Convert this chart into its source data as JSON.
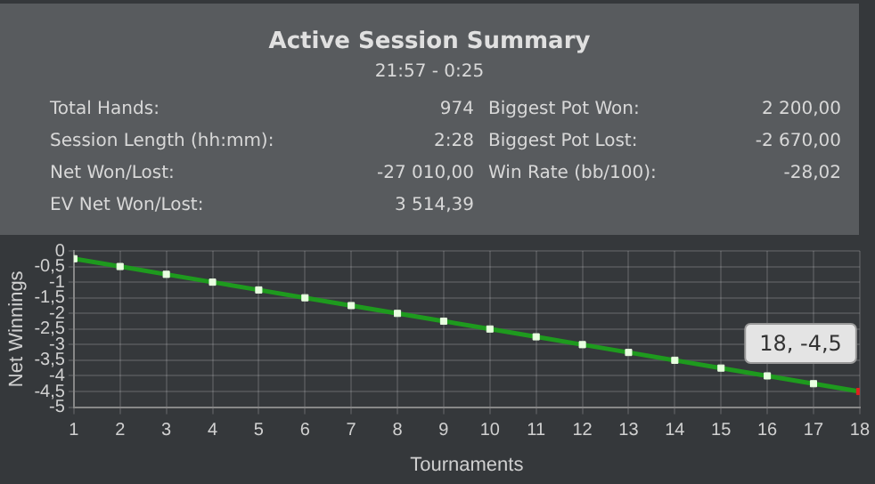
{
  "chart_data": [
    {
      "type": "other",
      "title": "Active Session Summary",
      "subtitle": "21:57 - 0:25",
      "annotations": [
        "Total Hands:",
        "974",
        "Biggest Pot Won:",
        "2 200,00",
        "Session Length (hh:mm):",
        "2:28",
        "Biggest Pot Lost:",
        "-2 670,00",
        "Net Won/Lost:",
        "-27 010,00",
        "Win Rate (bb/100):",
        "-28,02",
        "EV Net Won/Lost:",
        "3 514,39"
      ]
    },
    {
      "type": "line",
      "xlabel": "Tournaments",
      "ylabel": "Net Winnings",
      "x": [
        1,
        2,
        3,
        4,
        5,
        6,
        7,
        8,
        9,
        10,
        11,
        12,
        13,
        14,
        15,
        16,
        17,
        18
      ],
      "series": [
        {
          "color": "#1e9a1e",
          "values": [
            -0.25,
            -0.5,
            -0.75,
            -1,
            -1.25,
            -1.5,
            -1.75,
            -2,
            -2.25,
            -2.5,
            -2.75,
            -3,
            -3.25,
            -3.5,
            -3.75,
            -4,
            -4.25,
            -4.5
          ],
          "colors": [
            "#e8ffe0",
            "#e8ffe0",
            "#e8ffe0",
            "#e8ffe0",
            "#e8ffe0",
            "#e8ffe0",
            "#e8ffe0",
            "#e8ffe0",
            "#e8ffe0",
            "#e8ffe0",
            "#e8ffe0",
            "#e8ffe0",
            "#e8ffe0",
            "#e8ffe0",
            "#e8ffe0",
            "#e8ffe0",
            "#e8ffe0",
            "#e02020"
          ]
        }
      ],
      "xlim": [
        1,
        18
      ],
      "xticks": [
        1,
        2,
        3,
        4,
        5,
        6,
        7,
        8,
        9,
        10,
        11,
        12,
        13,
        14,
        15,
        16,
        17,
        18
      ],
      "ylim": [
        -5,
        0
      ],
      "yticks": [
        0,
        {
          "value": -0.5,
          "label": "-0,5"
        },
        -1,
        {
          "value": -1.5,
          "label": "-1,5"
        },
        -2,
        {
          "value": -2.5,
          "label": "-2,5"
        },
        -3,
        {
          "value": -3.5,
          "label": "-3,5"
        },
        -4,
        {
          "value": -4.5,
          "label": "-4,5"
        },
        -5
      ],
      "grid": true,
      "marker": "square",
      "line_style": "solid",
      "legend": false,
      "annotations": [
        {
          "text": "18, -4,5",
          "x": 18,
          "y": -4.5
        }
      ]
    }
  ]
}
